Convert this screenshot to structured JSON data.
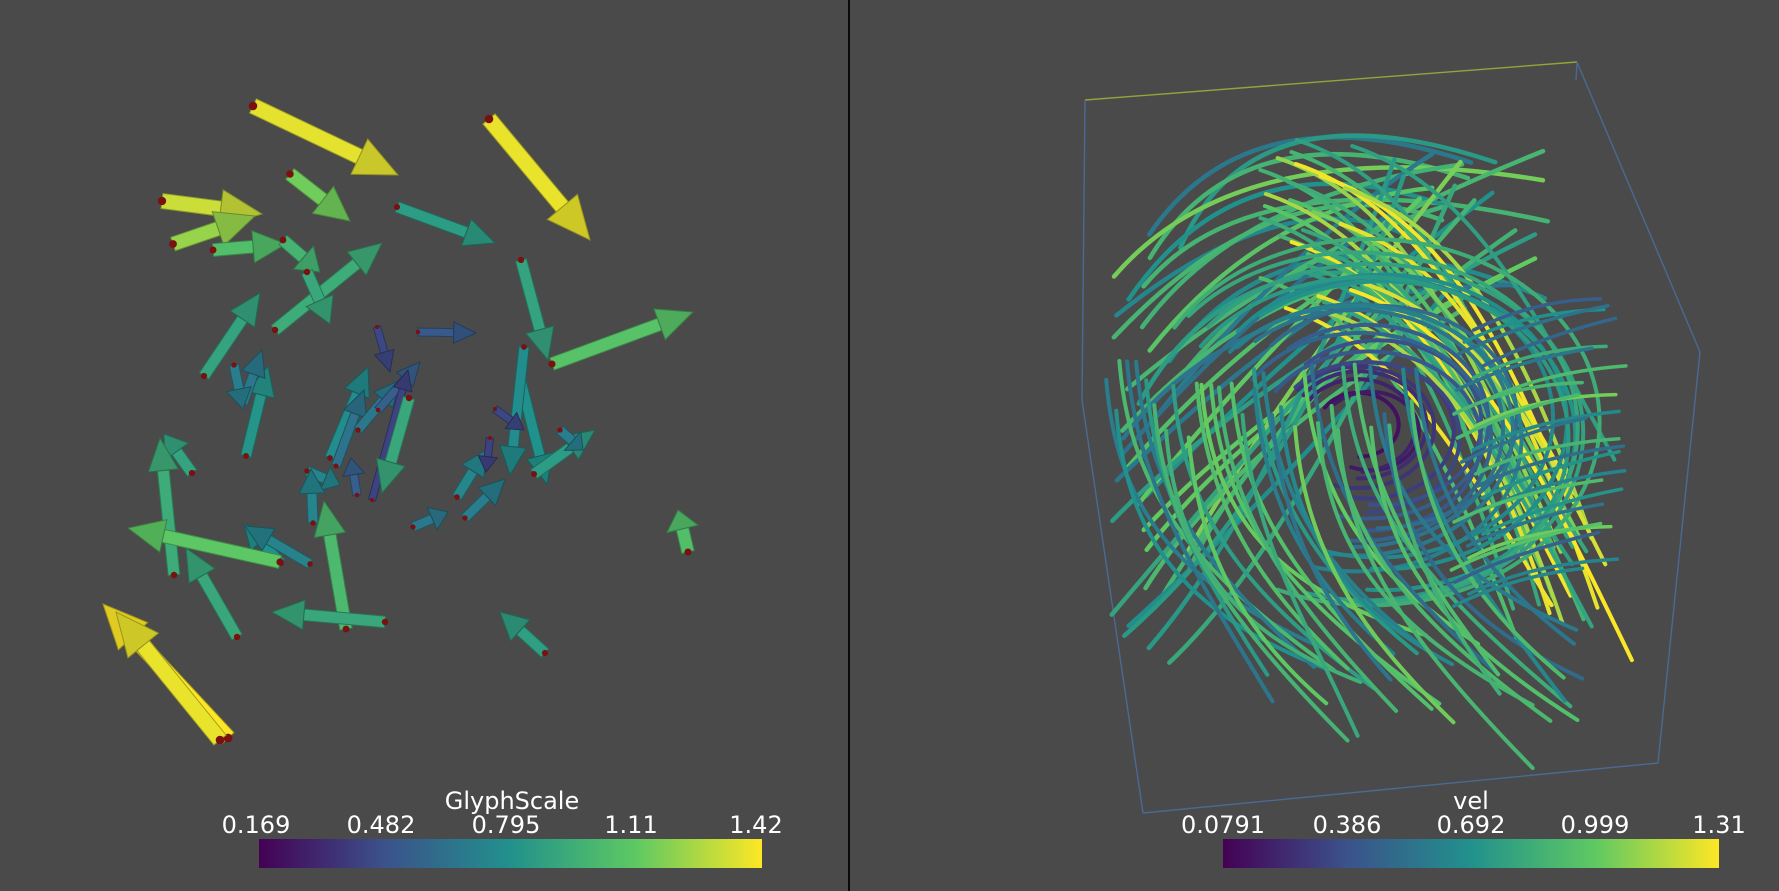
{
  "left_view": {
    "colorbar": {
      "title": "GlyphScale",
      "ticks": [
        "0.169",
        "0.482",
        "0.795",
        "1.11",
        "1.42"
      ],
      "colormap": [
        "#440154",
        "#3b528b",
        "#21918c",
        "#5ec962",
        "#fde725"
      ]
    },
    "icon": "arrow-glyph-field"
  },
  "right_view": {
    "colorbar": {
      "title": "vel",
      "ticks": [
        "0.0791",
        "0.386",
        "0.692",
        "0.999",
        "1.31"
      ],
      "colormap": [
        "#440154",
        "#3b528b",
        "#21918c",
        "#5ec962",
        "#fde725"
      ]
    },
    "icon": "streamtube-field-with-bounding-box"
  },
  "colors": {
    "background": "#4a4a4a",
    "divider": "#0a0a0a",
    "label_text": "#ffffff"
  }
}
